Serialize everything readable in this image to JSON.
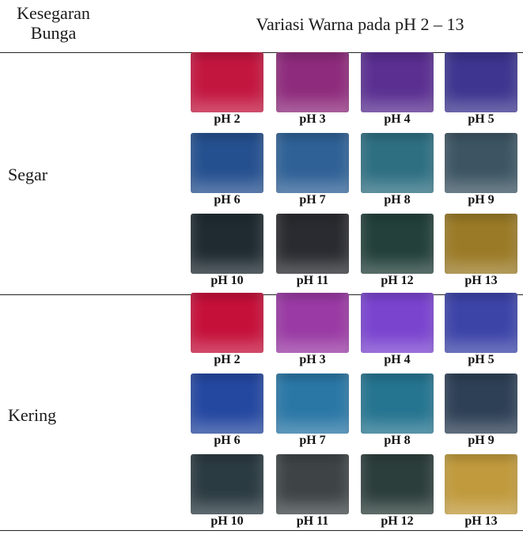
{
  "header": {
    "col1_line1": "Kesegaran",
    "col1_line2": "Bunga",
    "col2": "Variasi Warna pada pH 2 – 13"
  },
  "groups": [
    {
      "label": "Segar",
      "rows": [
        [
          {
            "label": "pH 2",
            "color": "#c3163f"
          },
          {
            "label": "pH 3",
            "color": "#8e2b7c"
          },
          {
            "label": "pH 4",
            "color": "#5a2f91"
          },
          {
            "label": "pH 5",
            "color": "#3d358f"
          }
        ],
        [
          {
            "label": "pH 6",
            "color": "#25508f"
          },
          {
            "label": "pH 7",
            "color": "#2f6196"
          },
          {
            "label": "pH 8",
            "color": "#2e6f82"
          },
          {
            "label": "pH 9",
            "color": "#3d5563"
          }
        ],
        [
          {
            "label": "pH 10",
            "color": "#1f2b31"
          },
          {
            "label": "pH 11",
            "color": "#2a2b30"
          },
          {
            "label": "pH 12",
            "color": "#23403a"
          },
          {
            "label": "pH 13",
            "color": "#9a7a26"
          }
        ]
      ]
    },
    {
      "label": "Kering",
      "rows": [
        [
          {
            "label": "pH 2",
            "color": "#c5103a"
          },
          {
            "label": "pH 3",
            "color": "#9a3aa4"
          },
          {
            "label": "pH 4",
            "color": "#7a44cf"
          },
          {
            "label": "pH 5",
            "color": "#3c44a8"
          }
        ],
        [
          {
            "label": "pH 6",
            "color": "#2447a0"
          },
          {
            "label": "pH 7",
            "color": "#2a77a6"
          },
          {
            "label": "pH 8",
            "color": "#257490"
          },
          {
            "label": "pH 9",
            "color": "#2e4056"
          }
        ],
        [
          {
            "label": "pH 10",
            "color": "#2b3b42"
          },
          {
            "label": "pH 11",
            "color": "#3e4446"
          },
          {
            "label": "pH 12",
            "color": "#2c3e3b"
          },
          {
            "label": "pH 13",
            "color": "#c09a3c"
          }
        ]
      ]
    }
  ]
}
